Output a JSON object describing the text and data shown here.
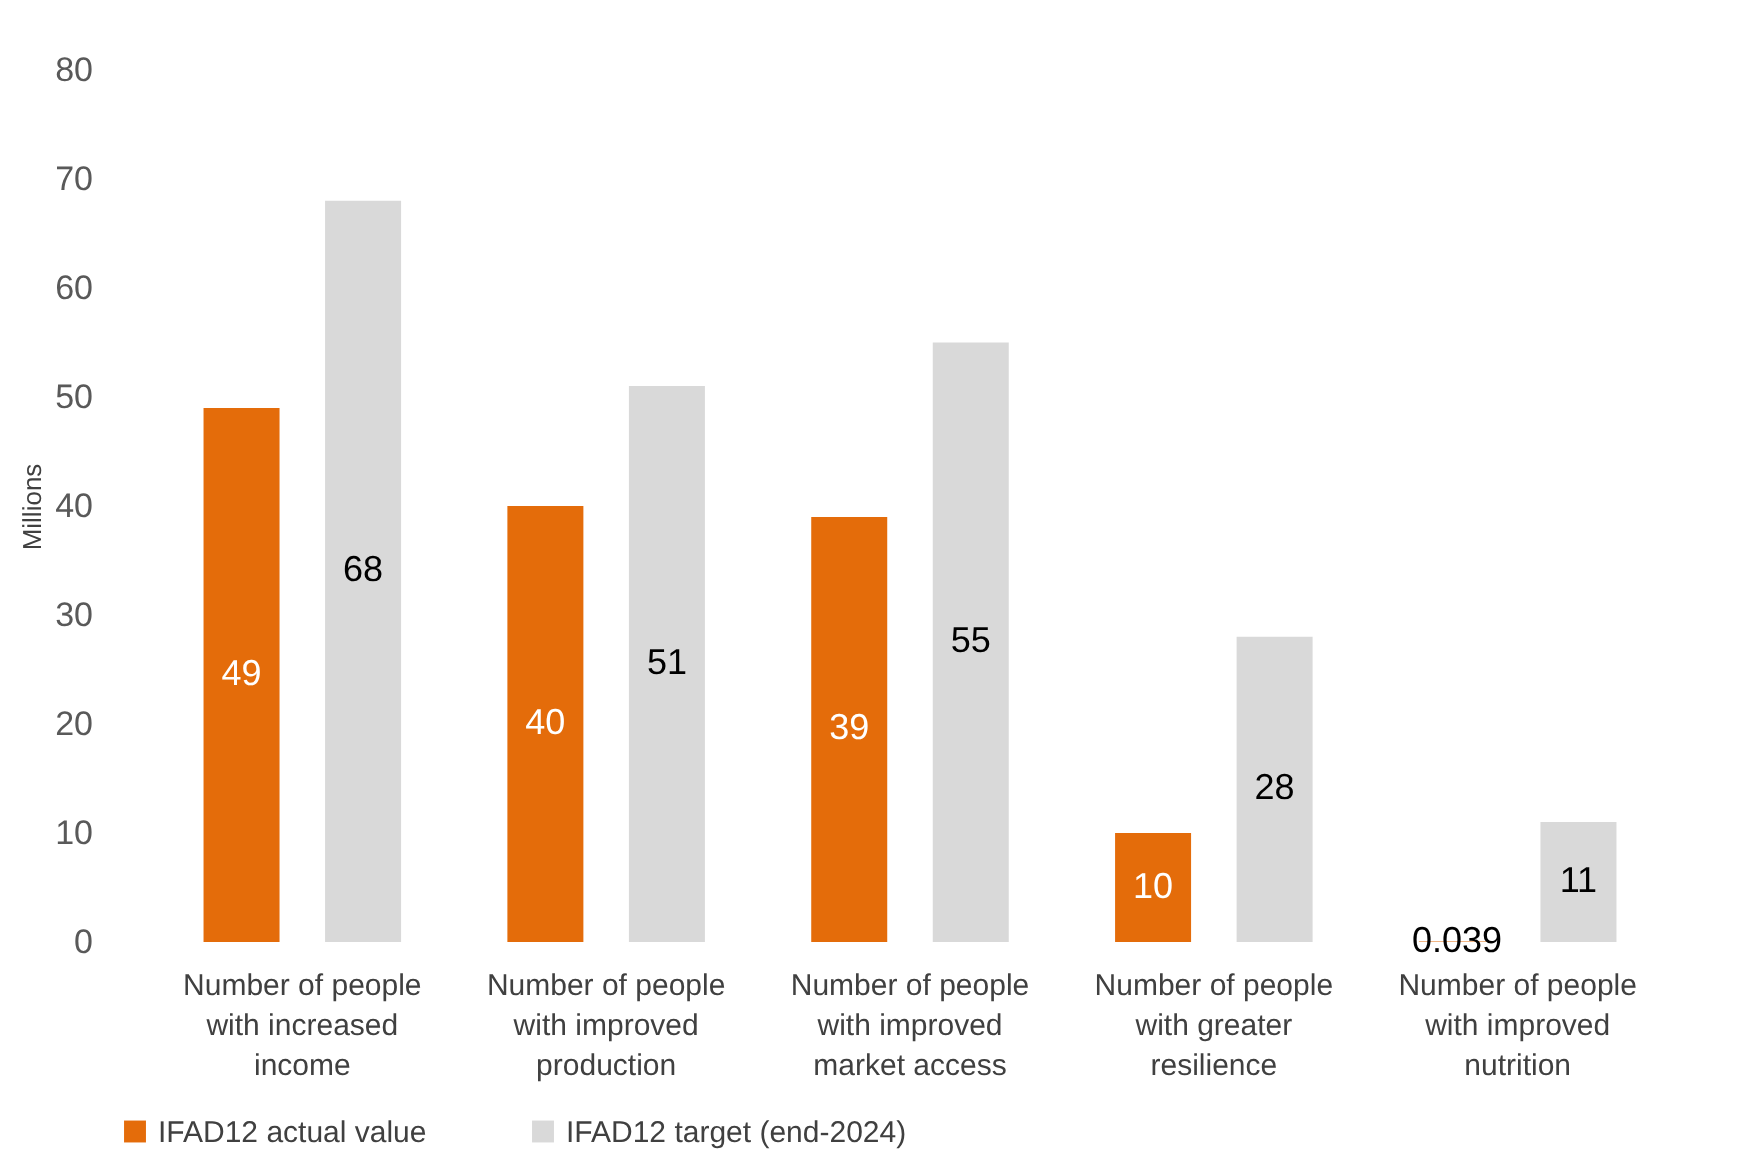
{
  "chart_data": {
    "type": "bar",
    "ylabel": "Millions",
    "categories": [
      "Number of people with increased income",
      "Number of people with improved production",
      "Number of people with improved market access",
      "Number of people with greater resilience",
      "Number of people with improved nutrition"
    ],
    "series": [
      {
        "name": "IFAD12 actual value",
        "color": "#e46c0a",
        "values": [
          49,
          40,
          39,
          10,
          0.039
        ]
      },
      {
        "name": "IFAD12 target (end-2024)",
        "color": "#d9d9d9",
        "values": [
          68,
          51,
          55,
          28,
          11
        ]
      }
    ],
    "ylim": [
      0,
      80
    ],
    "yticks": [
      0,
      10,
      20,
      30,
      40,
      50,
      60,
      70,
      80
    ],
    "grid": false,
    "legend": "bottom",
    "data_labels": true
  }
}
